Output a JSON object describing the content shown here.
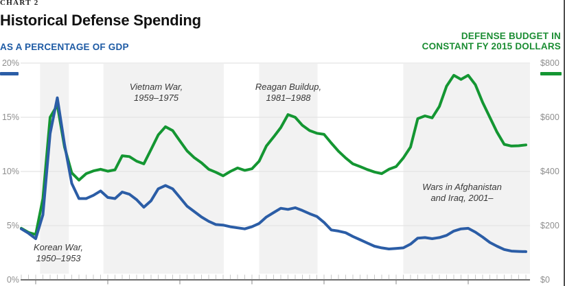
{
  "header": {
    "kicker": "CHART 2",
    "title": "Historical Defense Spending",
    "left_series_label": "AS A PERCENTAGE OF GDP",
    "right_series_label_line1": "DEFENSE BUDGET IN",
    "right_series_label_line2": "CONSTANT FY 2015 DOLLARS"
  },
  "colors": {
    "blue": "#2b5da6",
    "green": "#149632",
    "blue_label": "#1d5aa4",
    "green_label": "#1b8d33",
    "band": "#f2f2f2",
    "grid": "#e4e4e4",
    "axis": "#3f3f3f",
    "tick_minor": "#c8c8c8",
    "tick_major": "#9a9a9a",
    "axis_label": "#8e8e8e",
    "annotation": "#383838"
  },
  "axes": {
    "left_labels": [
      "20%",
      "15%",
      "10%",
      "5%",
      "0%"
    ],
    "right_labels": [
      "$800",
      "$600",
      "$400",
      "$200",
      "$0"
    ]
  },
  "annotations": [
    {
      "line1": "Korean War,",
      "line2": "1950–1953"
    },
    {
      "line1": "Vietnam War,",
      "line2": "1959–1975"
    },
    {
      "line1": "Reagan Buildup,",
      "line2": "1981–1988"
    },
    {
      "line1": "Wars in Afghanistan",
      "line2": "and Iraq, 2001–"
    }
  ],
  "chart_data": {
    "type": "line",
    "title": "Historical Defense Spending",
    "x": [
      1948,
      1949,
      1950,
      1951,
      1952,
      1953,
      1954,
      1955,
      1956,
      1957,
      1958,
      1959,
      1960,
      1961,
      1962,
      1963,
      1964,
      1965,
      1966,
      1967,
      1968,
      1969,
      1970,
      1971,
      1972,
      1973,
      1974,
      1975,
      1976,
      1977,
      1978,
      1979,
      1980,
      1981,
      1982,
      1983,
      1984,
      1985,
      1986,
      1987,
      1988,
      1989,
      1990,
      1991,
      1992,
      1993,
      1994,
      1995,
      1996,
      1997,
      1998,
      1999,
      2000,
      2001,
      2002,
      2003,
      2004,
      2005,
      2006,
      2007,
      2008,
      2009,
      2010,
      2011,
      2012,
      2013,
      2014,
      2015,
      2016,
      2017,
      2018
    ],
    "series": [
      {
        "name": "As a Percentage of GDP",
        "axis": "left",
        "color": "#2b5da6",
        "values": [
          4.7,
          4.3,
          3.8,
          6.0,
          13.5,
          16.8,
          12.5,
          8.9,
          7.5,
          7.5,
          7.8,
          8.2,
          7.6,
          7.5,
          8.1,
          7.9,
          7.4,
          6.7,
          7.3,
          8.4,
          8.7,
          8.4,
          7.6,
          6.8,
          6.3,
          5.8,
          5.4,
          5.1,
          5.05,
          4.9,
          4.8,
          4.7,
          4.9,
          5.2,
          5.8,
          6.2,
          6.6,
          6.5,
          6.65,
          6.4,
          6.1,
          5.85,
          5.3,
          4.6,
          4.5,
          4.35,
          4.0,
          3.7,
          3.4,
          3.1,
          2.95,
          2.85,
          2.9,
          2.95,
          3.3,
          3.85,
          3.9,
          3.8,
          3.9,
          4.1,
          4.5,
          4.7,
          4.75,
          4.4,
          3.95,
          3.45,
          3.1,
          2.8,
          2.65,
          2.62,
          2.6
        ]
      },
      {
        "name": "Defense Budget in Constant FY 2015 Dollars ($B)",
        "axis": "right",
        "color": "#149632",
        "values": [
          190,
          175,
          167,
          300,
          600,
          645,
          490,
          395,
          368,
          392,
          402,
          408,
          401,
          406,
          458,
          455,
          438,
          428,
          481,
          535,
          565,
          551,
          513,
          476,
          451,
          432,
          408,
          397,
          384,
          400,
          413,
          404,
          410,
          438,
          494,
          527,
          562,
          610,
          600,
          570,
          551,
          541,
          537,
          505,
          475,
          450,
          428,
          418,
          407,
          398,
          392,
          408,
          418,
          450,
          490,
          595,
          605,
          598,
          640,
          715,
          755,
          740,
          755,
          720,
          655,
          600,
          545,
          500,
          494,
          495,
          498
        ]
      }
    ],
    "left_axis": {
      "range": [
        0,
        20
      ],
      "unit": "percent of GDP",
      "grid_values": [
        20,
        15,
        10,
        5
      ],
      "tick_labels": [
        "20%",
        "15%",
        "10%",
        "5%",
        "0%"
      ]
    },
    "right_axis": {
      "range": [
        0,
        800
      ],
      "unit": "billions of constant FY 2015 dollars",
      "tick_labels": [
        "$800",
        "$600",
        "$400",
        "$200",
        "$0"
      ]
    },
    "bands": [
      {
        "label": "Korean War, 1950–1953",
        "from": 1950.6,
        "to": 1954.6
      },
      {
        "label": "Vietnam War, 1959–1975",
        "from": 1959.4,
        "to": 1976.1
      },
      {
        "label": "Reagan Buildup, 1981–1988",
        "from": 1981.0,
        "to": 1989.1
      },
      {
        "label": "Wars in Afghanistan and Iraq, 2001–",
        "from": 2001.0,
        "to": 2019.0
      }
    ],
    "legend_position": "top",
    "grid": true
  }
}
